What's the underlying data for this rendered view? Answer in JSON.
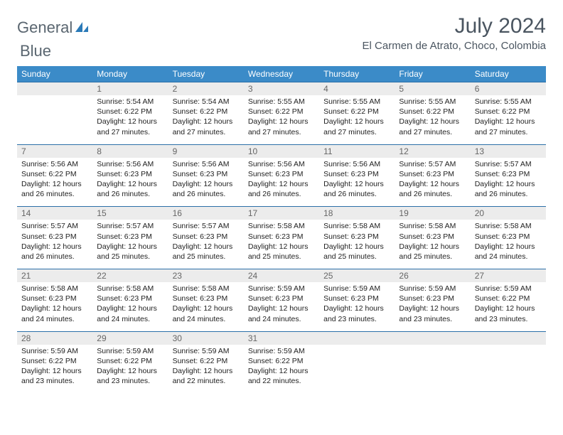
{
  "brand": {
    "word1": "General",
    "word2": "Blue"
  },
  "title": "July 2024",
  "location": "El Carmen de Atrato, Choco, Colombia",
  "colors": {
    "header_bg": "#3b8bc8",
    "header_text": "#ffffff",
    "daynum_bg": "#ececec",
    "rule": "#2b6fa8",
    "title_color": "#4a5560"
  },
  "weekday_labels": [
    "Sunday",
    "Monday",
    "Tuesday",
    "Wednesday",
    "Thursday",
    "Friday",
    "Saturday"
  ],
  "weeks": [
    [
      null,
      {
        "n": "1",
        "sr": "5:54 AM",
        "ss": "6:22 PM",
        "dl": "12 hours and 27 minutes."
      },
      {
        "n": "2",
        "sr": "5:54 AM",
        "ss": "6:22 PM",
        "dl": "12 hours and 27 minutes."
      },
      {
        "n": "3",
        "sr": "5:55 AM",
        "ss": "6:22 PM",
        "dl": "12 hours and 27 minutes."
      },
      {
        "n": "4",
        "sr": "5:55 AM",
        "ss": "6:22 PM",
        "dl": "12 hours and 27 minutes."
      },
      {
        "n": "5",
        "sr": "5:55 AM",
        "ss": "6:22 PM",
        "dl": "12 hours and 27 minutes."
      },
      {
        "n": "6",
        "sr": "5:55 AM",
        "ss": "6:22 PM",
        "dl": "12 hours and 27 minutes."
      }
    ],
    [
      {
        "n": "7",
        "sr": "5:56 AM",
        "ss": "6:22 PM",
        "dl": "12 hours and 26 minutes."
      },
      {
        "n": "8",
        "sr": "5:56 AM",
        "ss": "6:23 PM",
        "dl": "12 hours and 26 minutes."
      },
      {
        "n": "9",
        "sr": "5:56 AM",
        "ss": "6:23 PM",
        "dl": "12 hours and 26 minutes."
      },
      {
        "n": "10",
        "sr": "5:56 AM",
        "ss": "6:23 PM",
        "dl": "12 hours and 26 minutes."
      },
      {
        "n": "11",
        "sr": "5:56 AM",
        "ss": "6:23 PM",
        "dl": "12 hours and 26 minutes."
      },
      {
        "n": "12",
        "sr": "5:57 AM",
        "ss": "6:23 PM",
        "dl": "12 hours and 26 minutes."
      },
      {
        "n": "13",
        "sr": "5:57 AM",
        "ss": "6:23 PM",
        "dl": "12 hours and 26 minutes."
      }
    ],
    [
      {
        "n": "14",
        "sr": "5:57 AM",
        "ss": "6:23 PM",
        "dl": "12 hours and 26 minutes."
      },
      {
        "n": "15",
        "sr": "5:57 AM",
        "ss": "6:23 PM",
        "dl": "12 hours and 25 minutes."
      },
      {
        "n": "16",
        "sr": "5:57 AM",
        "ss": "6:23 PM",
        "dl": "12 hours and 25 minutes."
      },
      {
        "n": "17",
        "sr": "5:58 AM",
        "ss": "6:23 PM",
        "dl": "12 hours and 25 minutes."
      },
      {
        "n": "18",
        "sr": "5:58 AM",
        "ss": "6:23 PM",
        "dl": "12 hours and 25 minutes."
      },
      {
        "n": "19",
        "sr": "5:58 AM",
        "ss": "6:23 PM",
        "dl": "12 hours and 25 minutes."
      },
      {
        "n": "20",
        "sr": "5:58 AM",
        "ss": "6:23 PM",
        "dl": "12 hours and 24 minutes."
      }
    ],
    [
      {
        "n": "21",
        "sr": "5:58 AM",
        "ss": "6:23 PM",
        "dl": "12 hours and 24 minutes."
      },
      {
        "n": "22",
        "sr": "5:58 AM",
        "ss": "6:23 PM",
        "dl": "12 hours and 24 minutes."
      },
      {
        "n": "23",
        "sr": "5:58 AM",
        "ss": "6:23 PM",
        "dl": "12 hours and 24 minutes."
      },
      {
        "n": "24",
        "sr": "5:59 AM",
        "ss": "6:23 PM",
        "dl": "12 hours and 24 minutes."
      },
      {
        "n": "25",
        "sr": "5:59 AM",
        "ss": "6:23 PM",
        "dl": "12 hours and 23 minutes."
      },
      {
        "n": "26",
        "sr": "5:59 AM",
        "ss": "6:23 PM",
        "dl": "12 hours and 23 minutes."
      },
      {
        "n": "27",
        "sr": "5:59 AM",
        "ss": "6:22 PM",
        "dl": "12 hours and 23 minutes."
      }
    ],
    [
      {
        "n": "28",
        "sr": "5:59 AM",
        "ss": "6:22 PM",
        "dl": "12 hours and 23 minutes."
      },
      {
        "n": "29",
        "sr": "5:59 AM",
        "ss": "6:22 PM",
        "dl": "12 hours and 23 minutes."
      },
      {
        "n": "30",
        "sr": "5:59 AM",
        "ss": "6:22 PM",
        "dl": "12 hours and 22 minutes."
      },
      {
        "n": "31",
        "sr": "5:59 AM",
        "ss": "6:22 PM",
        "dl": "12 hours and 22 minutes."
      },
      null,
      null,
      null
    ]
  ],
  "labels": {
    "sunrise": "Sunrise:",
    "sunset": "Sunset:",
    "daylight": "Daylight:"
  }
}
